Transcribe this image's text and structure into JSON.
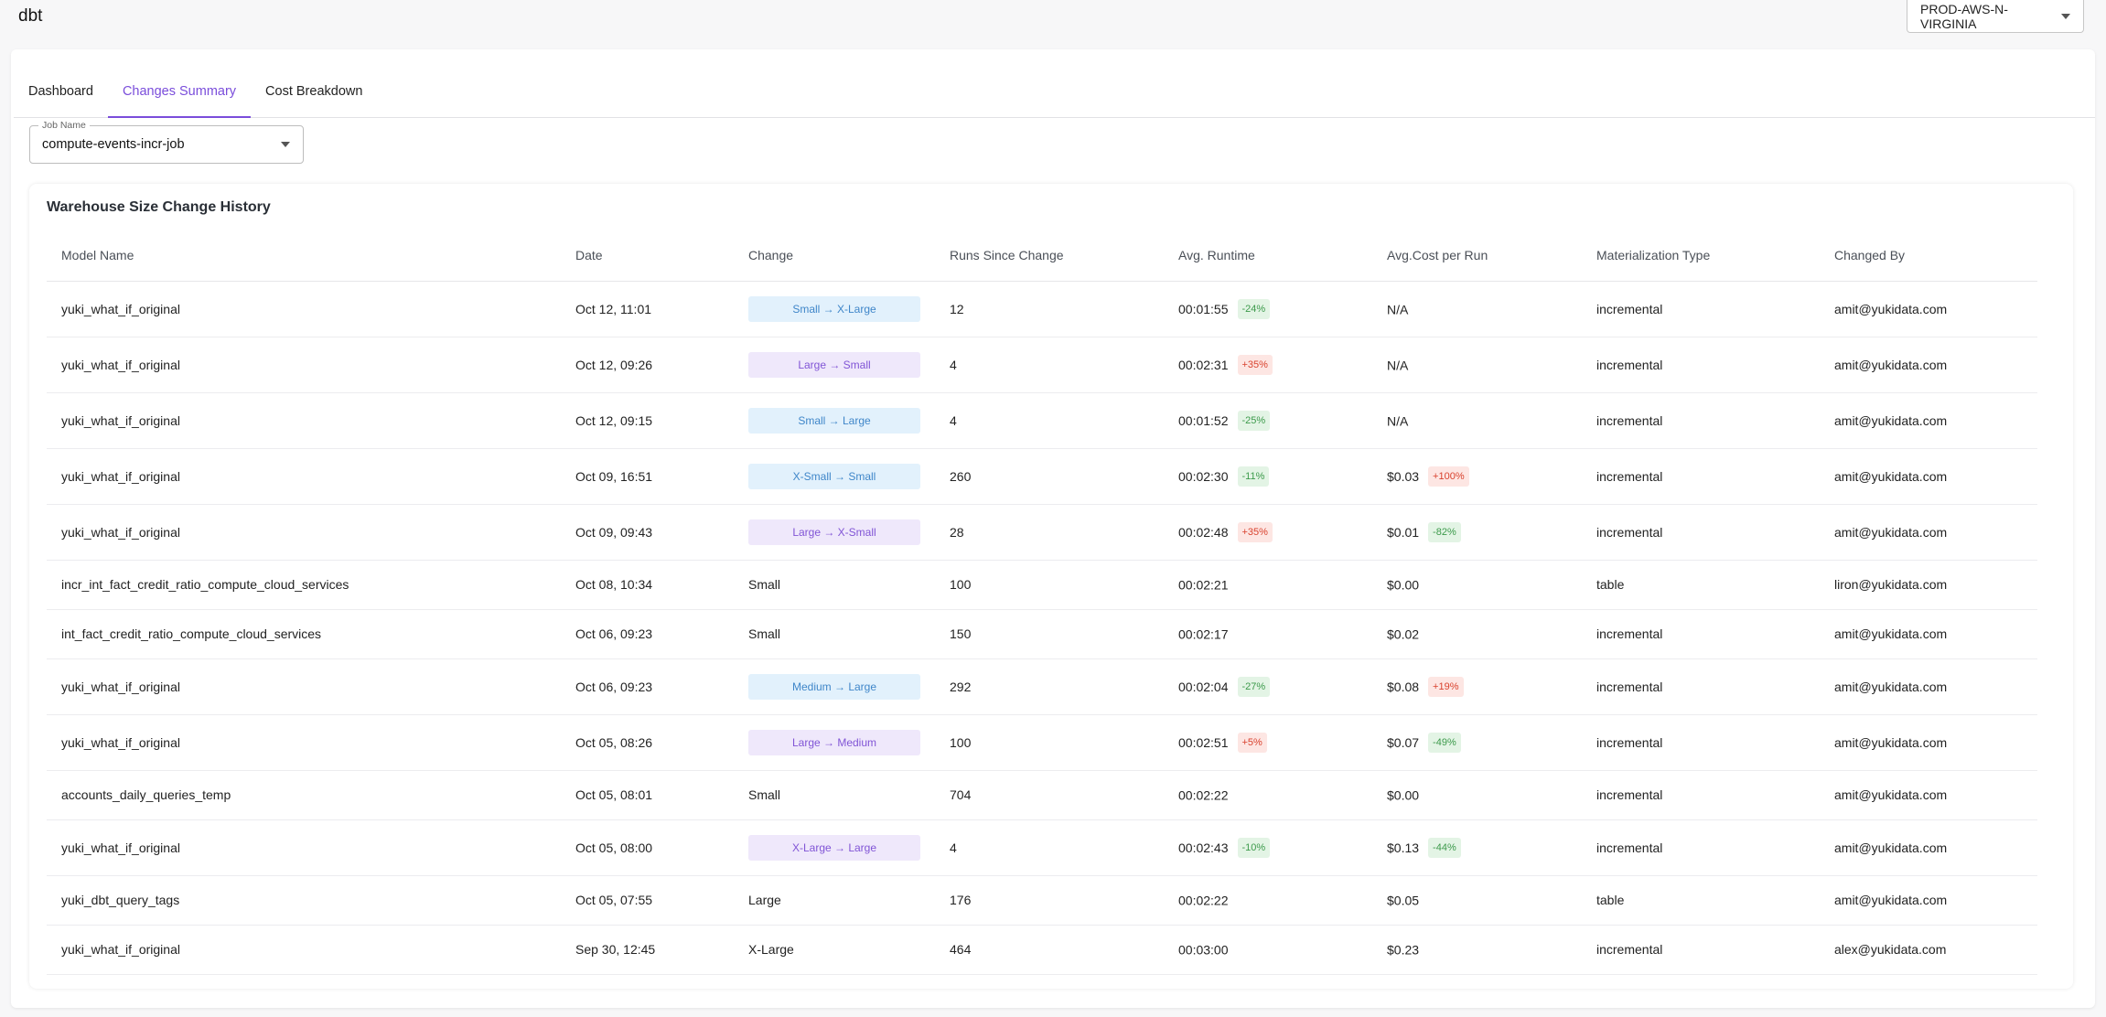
{
  "app": {
    "title": "dbt"
  },
  "env_select": {
    "value": "PROD-AWS-N-VIRGINIA",
    "icon": "chevron-down-icon"
  },
  "tabs": [
    {
      "label": "Dashboard",
      "active": false
    },
    {
      "label": "Changes Summary",
      "active": true
    },
    {
      "label": "Cost Breakdown",
      "active": false
    }
  ],
  "job_field": {
    "label": "Job Name",
    "value": "compute-events-incr-job"
  },
  "card": {
    "title": "Warehouse Size Change History"
  },
  "colors": {
    "accent": "#7a4ddb",
    "size_up": "#3f86c9",
    "size_down": "#8155d6",
    "good": "#3c9a4b",
    "bad": "#d9432f"
  },
  "table": {
    "headers": [
      "Model Name",
      "Date",
      "Change",
      "Runs Since Change",
      "Avg. Runtime",
      "Avg.Cost per Run",
      "Materialization Type",
      "Changed By"
    ],
    "rows": [
      {
        "model": "yuki_what_if_original",
        "date": "Oct 12, 11:01",
        "change": "Small → X-Large",
        "change_kind": "up",
        "runs": "12",
        "runtime": "00:01:55",
        "runtime_delta": "-24%",
        "runtime_trend": "good",
        "cost": "N/A",
        "cost_delta": "",
        "cost_trend": "",
        "mat": "incremental",
        "by": "amit@yukidata.com"
      },
      {
        "model": "yuki_what_if_original",
        "date": "Oct 12, 09:26",
        "change": "Large → Small",
        "change_kind": "down",
        "runs": "4",
        "runtime": "00:02:31",
        "runtime_delta": "+35%",
        "runtime_trend": "bad",
        "cost": "N/A",
        "cost_delta": "",
        "cost_trend": "",
        "mat": "incremental",
        "by": "amit@yukidata.com"
      },
      {
        "model": "yuki_what_if_original",
        "date": "Oct 12, 09:15",
        "change": "Small → Large",
        "change_kind": "up",
        "runs": "4",
        "runtime": "00:01:52",
        "runtime_delta": "-25%",
        "runtime_trend": "good",
        "cost": "N/A",
        "cost_delta": "",
        "cost_trend": "",
        "mat": "incremental",
        "by": "amit@yukidata.com"
      },
      {
        "model": "yuki_what_if_original",
        "date": "Oct 09, 16:51",
        "change": "X-Small → Small",
        "change_kind": "up",
        "runs": "260",
        "runtime": "00:02:30",
        "runtime_delta": "-11%",
        "runtime_trend": "good",
        "cost": "$0.03",
        "cost_delta": "+100%",
        "cost_trend": "bad",
        "mat": "incremental",
        "by": "amit@yukidata.com"
      },
      {
        "model": "yuki_what_if_original",
        "date": "Oct 09, 09:43",
        "change": "Large → X-Small",
        "change_kind": "down",
        "runs": "28",
        "runtime": "00:02:48",
        "runtime_delta": "+35%",
        "runtime_trend": "bad",
        "cost": "$0.01",
        "cost_delta": "-82%",
        "cost_trend": "good",
        "mat": "incremental",
        "by": "amit@yukidata.com"
      },
      {
        "model": "incr_int_fact_credit_ratio_compute_cloud_services",
        "date": "Oct 08, 10:34",
        "change": "Small",
        "change_kind": "none",
        "runs": "100",
        "runtime": "00:02:21",
        "runtime_delta": "",
        "runtime_trend": "",
        "cost": "$0.00",
        "cost_delta": "",
        "cost_trend": "",
        "mat": "table",
        "by": "liron@yukidata.com"
      },
      {
        "model": "int_fact_credit_ratio_compute_cloud_services",
        "date": "Oct 06, 09:23",
        "change": "Small",
        "change_kind": "none",
        "runs": "150",
        "runtime": "00:02:17",
        "runtime_delta": "",
        "runtime_trend": "",
        "cost": "$0.02",
        "cost_delta": "",
        "cost_trend": "",
        "mat": "incremental",
        "by": "amit@yukidata.com"
      },
      {
        "model": "yuki_what_if_original",
        "date": "Oct 06, 09:23",
        "change": "Medium → Large",
        "change_kind": "up",
        "runs": "292",
        "runtime": "00:02:04",
        "runtime_delta": "-27%",
        "runtime_trend": "good",
        "cost": "$0.08",
        "cost_delta": "+19%",
        "cost_trend": "bad",
        "mat": "incremental",
        "by": "amit@yukidata.com"
      },
      {
        "model": "yuki_what_if_original",
        "date": "Oct 05, 08:26",
        "change": "Large → Medium",
        "change_kind": "down",
        "runs": "100",
        "runtime": "00:02:51",
        "runtime_delta": "+5%",
        "runtime_trend": "bad",
        "cost": "$0.07",
        "cost_delta": "-49%",
        "cost_trend": "good",
        "mat": "incremental",
        "by": "amit@yukidata.com"
      },
      {
        "model": "accounts_daily_queries_temp",
        "date": "Oct 05, 08:01",
        "change": "Small",
        "change_kind": "none",
        "runs": "704",
        "runtime": "00:02:22",
        "runtime_delta": "",
        "runtime_trend": "",
        "cost": "$0.00",
        "cost_delta": "",
        "cost_trend": "",
        "mat": "incremental",
        "by": "amit@yukidata.com"
      },
      {
        "model": "yuki_what_if_original",
        "date": "Oct 05, 08:00",
        "change": "X-Large → Large",
        "change_kind": "down",
        "runs": "4",
        "runtime": "00:02:43",
        "runtime_delta": "-10%",
        "runtime_trend": "good",
        "cost": "$0.13",
        "cost_delta": "-44%",
        "cost_trend": "good",
        "mat": "incremental",
        "by": "amit@yukidata.com"
      },
      {
        "model": "yuki_dbt_query_tags",
        "date": "Oct 05, 07:55",
        "change": "Large",
        "change_kind": "none",
        "runs": "176",
        "runtime": "00:02:22",
        "runtime_delta": "",
        "runtime_trend": "",
        "cost": "$0.05",
        "cost_delta": "",
        "cost_trend": "",
        "mat": "table",
        "by": "amit@yukidata.com"
      },
      {
        "model": "yuki_what_if_original",
        "date": "Sep 30, 12:45",
        "change": "X-Large",
        "change_kind": "none",
        "runs": "464",
        "runtime": "00:03:00",
        "runtime_delta": "",
        "runtime_trend": "",
        "cost": "$0.23",
        "cost_delta": "",
        "cost_trend": "",
        "mat": "incremental",
        "by": "alex@yukidata.com"
      }
    ]
  }
}
